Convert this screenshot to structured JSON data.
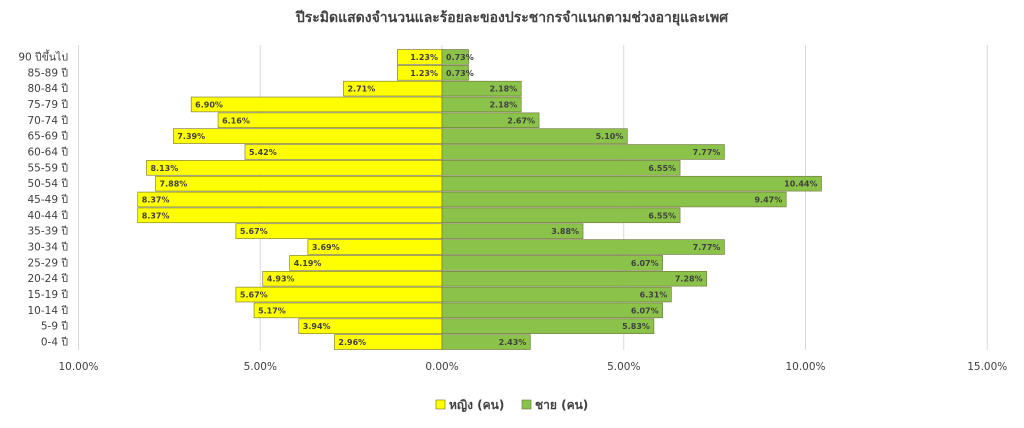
{
  "chart_data": {
    "type": "bar",
    "orientation": "horizontal-population-pyramid",
    "title": "ปีระมิดแสดงจำนวนและร้อยละของประชากรจำแนกตามช่วงอายุและเพศ",
    "categories": [
      "90 ปีขึ้นไป",
      "85-89 ปี",
      "80-84 ปี",
      "75-79 ปี",
      "70-74 ปี",
      "65-69 ปี",
      "60-64 ปี",
      "55-59 ปี",
      "50-54 ปี",
      "45-49 ปี",
      "40-44 ปี",
      "35-39 ปี",
      "30-34 ปี",
      "25-29 ปี",
      "20-24 ปี",
      "15-19 ปี",
      "10-14 ปี",
      "5-9 ปี",
      "0-4 ปี"
    ],
    "series": [
      {
        "name": "หญิง (คน)",
        "color": "#FFFF00",
        "side": "left",
        "values": [
          1.23,
          1.23,
          2.71,
          6.9,
          6.16,
          7.39,
          5.42,
          8.13,
          7.88,
          8.37,
          8.37,
          5.67,
          3.69,
          4.19,
          4.93,
          5.67,
          5.17,
          3.94,
          2.96
        ],
        "labels": [
          "1.23%",
          "1.23%",
          "2.71%",
          "6.90%",
          "6.16%",
          "7.39%",
          "5.42%",
          "8.13%",
          "7.88%",
          "8.37%",
          "8.37%",
          "5.67%",
          "3.69%",
          "4.19%",
          "4.93%",
          "5.67%",
          "5.17%",
          "3.94%",
          "2.96%"
        ]
      },
      {
        "name": "ชาย (คน)",
        "color": "#8BC34A",
        "side": "right",
        "values": [
          0.73,
          0.73,
          2.18,
          2.18,
          2.67,
          5.1,
          7.77,
          6.55,
          10.44,
          9.47,
          6.55,
          3.88,
          7.77,
          6.07,
          7.28,
          6.31,
          6.07,
          5.83,
          2.43
        ],
        "labels": [
          "0.73%",
          "0.73%",
          "2.18%",
          "2.18%",
          "2.67%",
          "5.10%",
          "7.77%",
          "6.55%",
          "10.44%",
          "9.47%",
          "6.55%",
          "3.88%",
          "7.77%",
          "6.07%",
          "7.28%",
          "6.31%",
          "6.07%",
          "5.83%",
          "2.43%"
        ]
      }
    ],
    "xlim": [
      -10,
      15
    ],
    "x_ticks": [
      -10,
      -5,
      0,
      5,
      10,
      15
    ],
    "x_tick_labels": [
      "10.00%",
      "5.00%",
      "0.00%",
      "5.00%",
      "10.00%",
      "15.00%"
    ],
    "grid": "vertical",
    "legend_position": "bottom"
  }
}
